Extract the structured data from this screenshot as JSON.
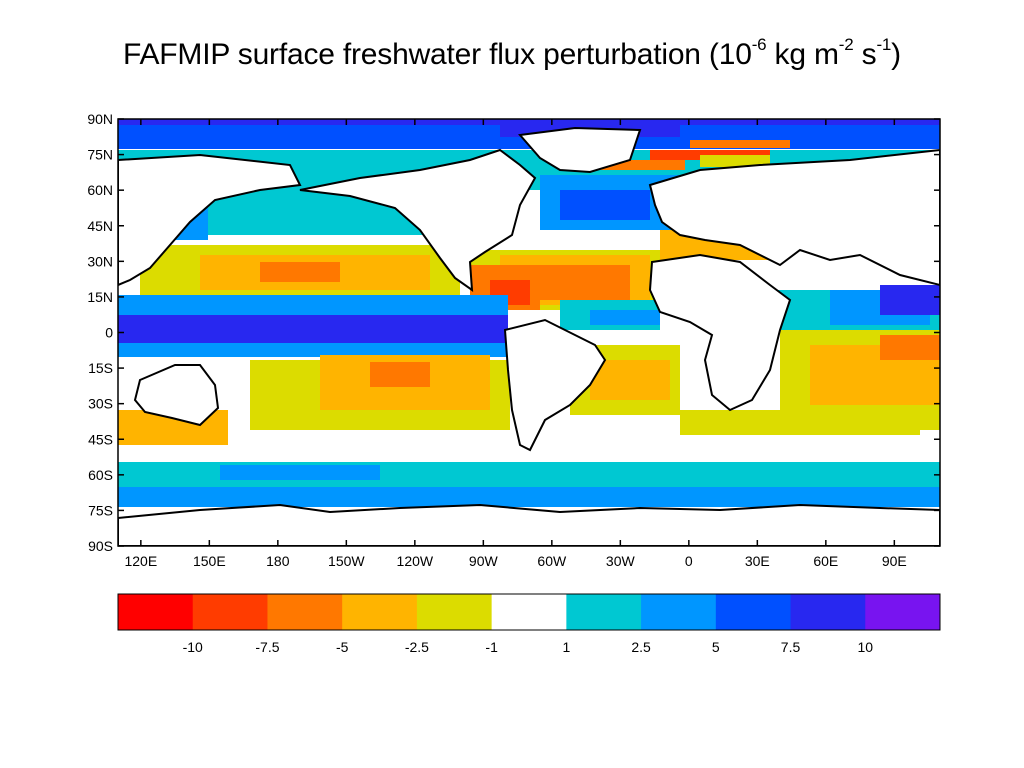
{
  "title": {
    "main": "FAFMIP surface freshwater flux perturbation (10",
    "exp1": "-6",
    "mid1": " kg m",
    "exp2": "-2",
    "mid2": " s",
    "exp3": "-1",
    "end": ")"
  },
  "map": {
    "lat_labels": [
      "90N",
      "75N",
      "60N",
      "45N",
      "30N",
      "15N",
      "0",
      "15S",
      "30S",
      "45S",
      "60S",
      "75S",
      "90S"
    ],
    "lon_labels": [
      "120E",
      "150E",
      "180",
      "150W",
      "120W",
      "90W",
      "60W",
      "30W",
      "0",
      "30E",
      "60E",
      "90E"
    ],
    "lon_range": [
      110,
      470
    ],
    "lat_range": [
      -90,
      90
    ]
  },
  "colorbar": {
    "colors": [
      "#ff0000",
      "#ff3c00",
      "#ff7800",
      "#ffb400",
      "#dcdc00",
      "#ffffff",
      "#00c8d2",
      "#0096ff",
      "#0050ff",
      "#2828f0",
      "#7814f0"
    ],
    "tick_labels": [
      "-10",
      "-7.5",
      "-5",
      "-2.5",
      "-1",
      "1",
      "2.5",
      "5",
      "7.5",
      "10"
    ]
  }
}
